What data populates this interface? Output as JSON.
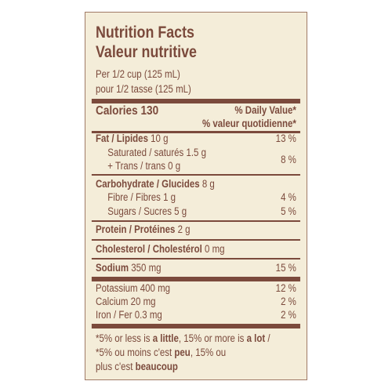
{
  "header": {
    "title_en": "Nutrition Facts",
    "title_fr": "Valeur nutritive",
    "serving_en": "Per 1/2 cup (125 mL)",
    "serving_fr": "pour 1/2 tasse (125 mL)"
  },
  "calories": "Calories 130",
  "daily_value": {
    "en": "% Daily Value*",
    "fr": "% valeur quotidienne*"
  },
  "rows": {
    "fat": {
      "name": "Fat / Lipides",
      "amount": "10 g",
      "dv": "13 %"
    },
    "saturated": {
      "name": "Saturated / saturés 1.5 g"
    },
    "trans": {
      "name": "+ Trans / trans 0 g"
    },
    "sat_trans_dv": "8 %",
    "carbohydrate": {
      "name": "Carbohydrate / Glucides",
      "amount": "8 g"
    },
    "fibre": {
      "name": "Fibre / Fibres 1 g",
      "dv": "4 %"
    },
    "sugars": {
      "name": "Sugars / Sucres 5 g",
      "dv": "5 %"
    },
    "protein": {
      "name": "Protein / Protéines",
      "amount": "2 g"
    },
    "cholesterol": {
      "name": "Cholesterol / Cholestérol",
      "amount": "0 mg"
    },
    "sodium": {
      "name": "Sodium",
      "amount": "350 mg",
      "dv": "15 %"
    },
    "potassium": {
      "name": "Potassium 400 mg",
      "dv": "12 %"
    },
    "calcium": {
      "name": "Calcium 20 mg",
      "dv": "2 %"
    },
    "iron": {
      "name": "Iron / Fer 0.3 mg",
      "dv": "2 %"
    }
  },
  "footnote": [
    [
      "*5% or less is ",
      "a little",
      ", 15% or more is ",
      "a lot",
      " /"
    ],
    [
      "*5% ou moins c'est ",
      "peu",
      ", 15% ou"
    ],
    [
      "plus c'est ",
      "beaucoup"
    ]
  ]
}
